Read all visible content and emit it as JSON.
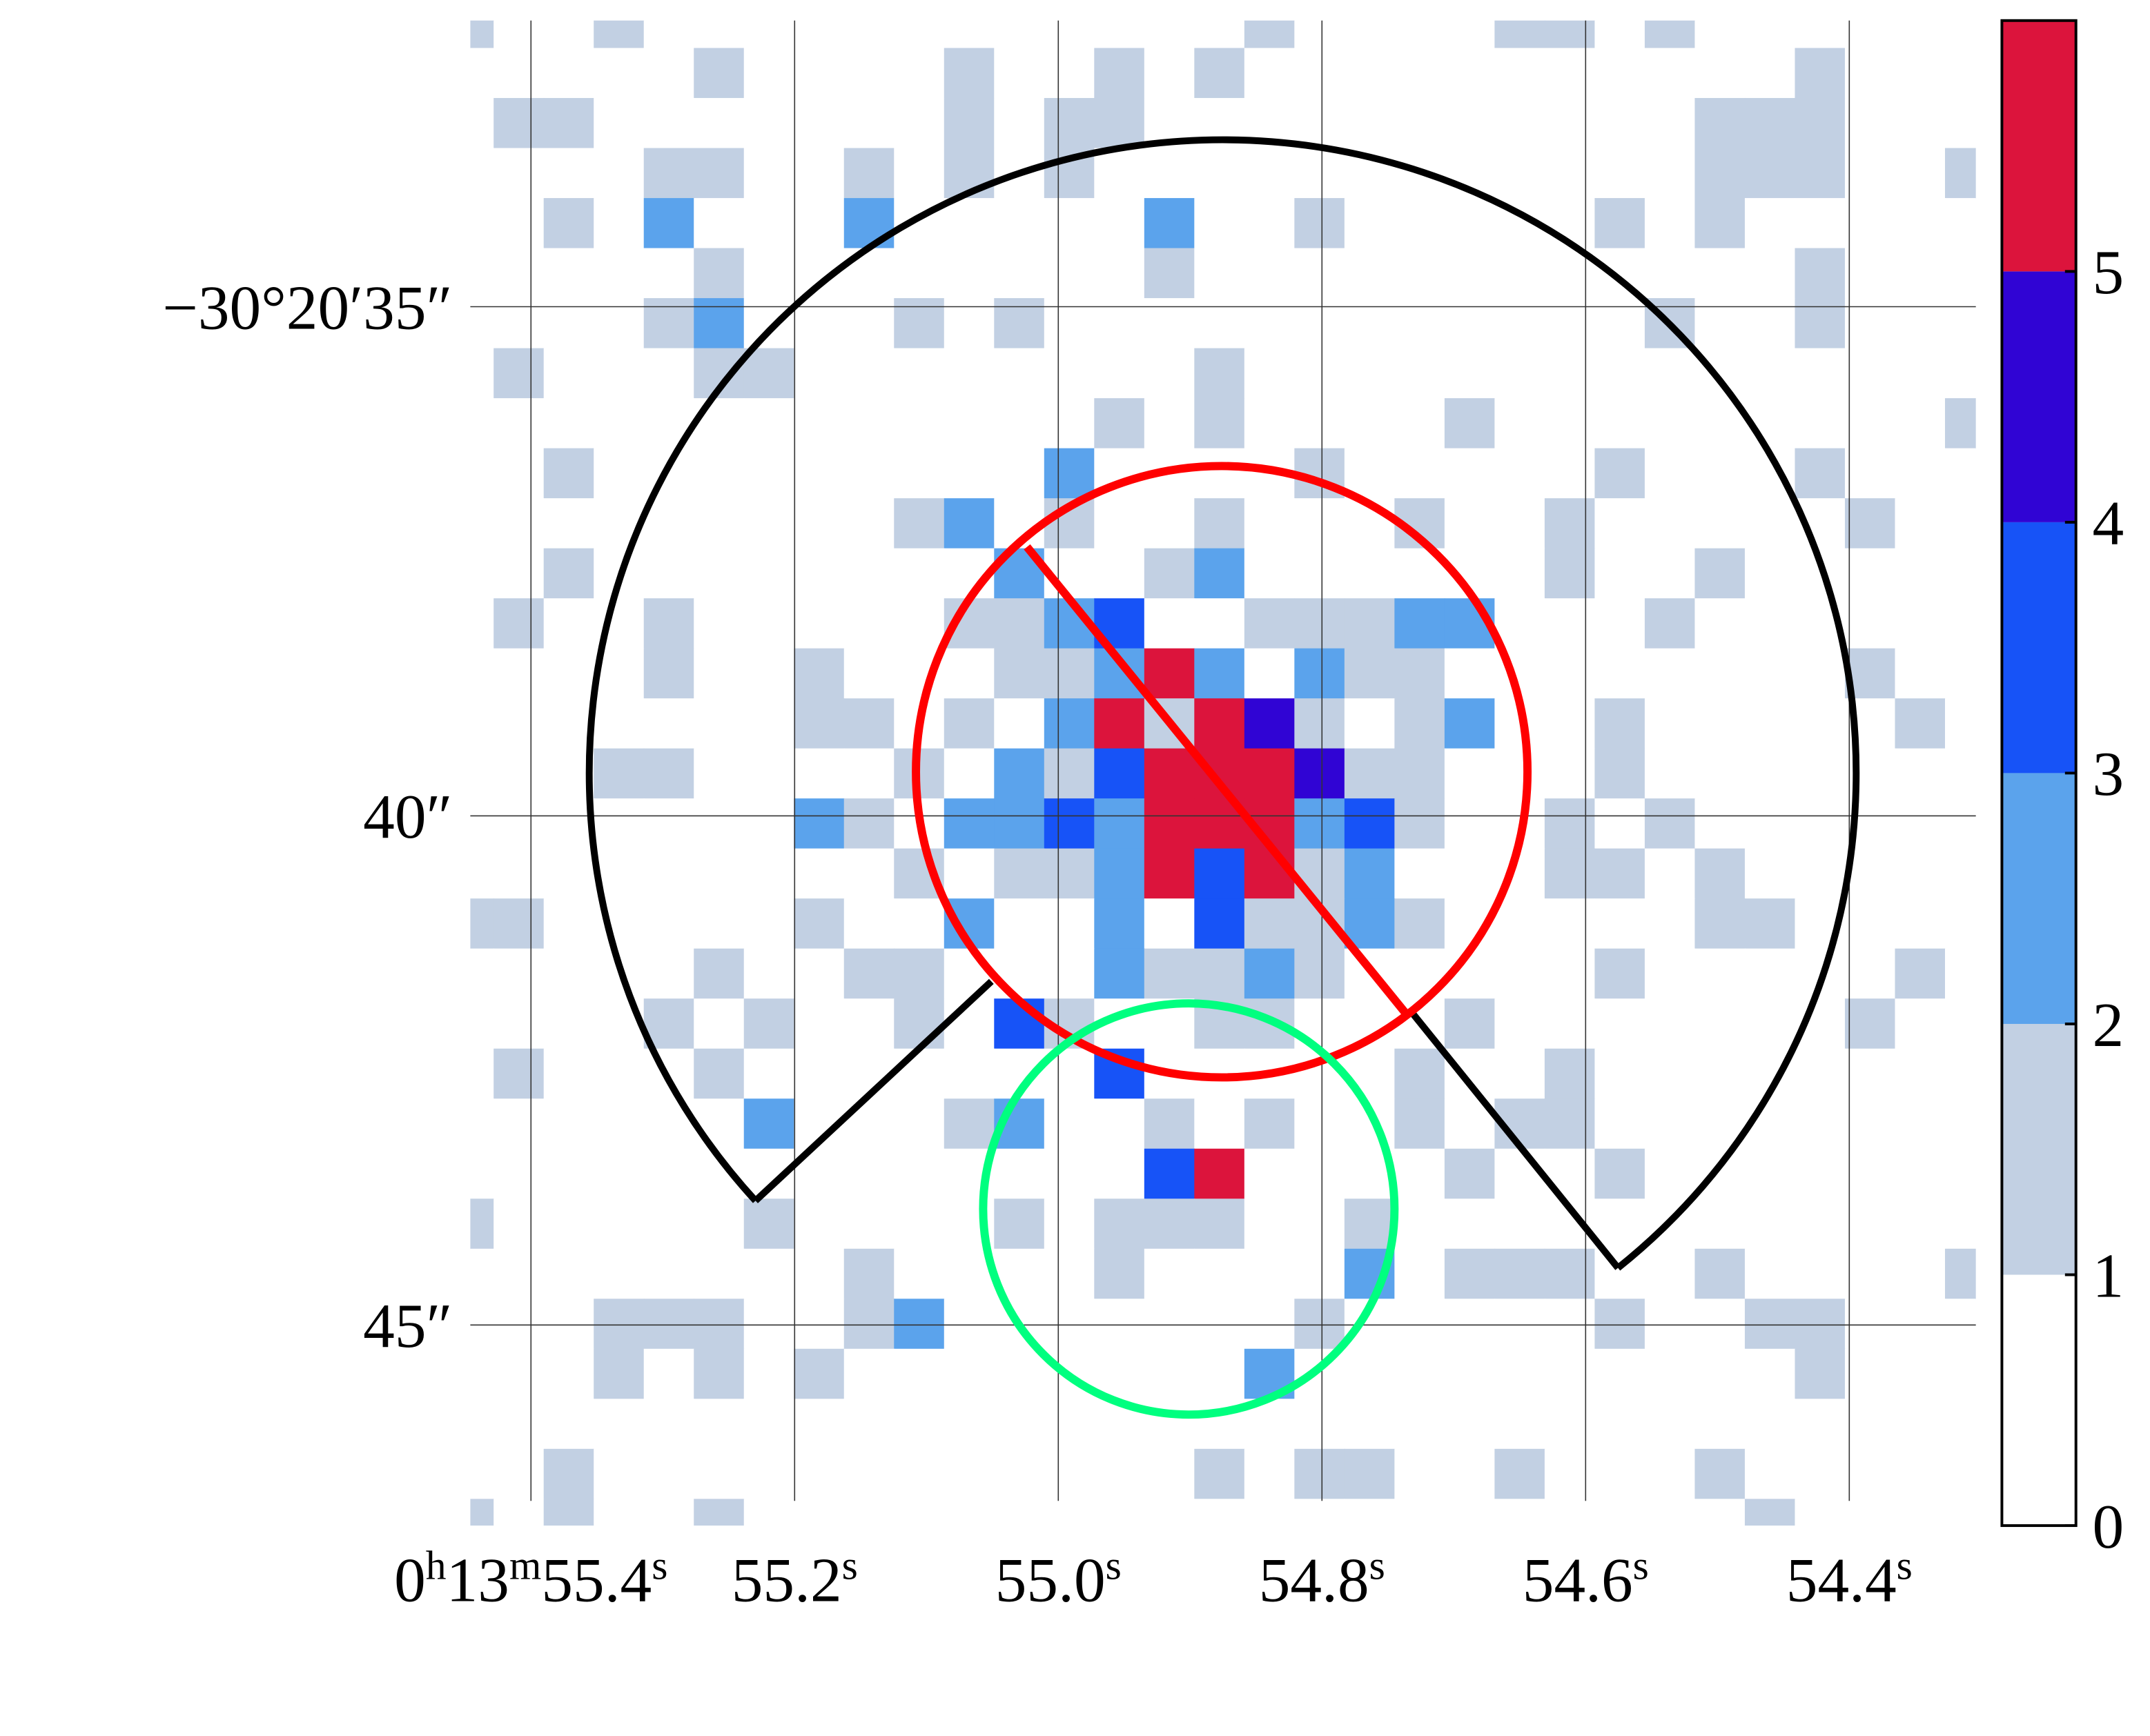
{
  "chart_data": {
    "type": "heatmap",
    "z": [
      [
        1,
        0,
        0,
        1,
        0,
        0,
        0,
        0,
        0,
        0,
        0,
        0,
        0,
        0,
        0,
        0,
        1,
        0,
        0,
        0,
        0,
        1,
        1,
        0,
        1,
        0,
        0,
        0,
        0,
        0,
        0
      ],
      [
        0,
        0,
        0,
        0,
        0,
        1,
        0,
        0,
        0,
        0,
        1,
        0,
        0,
        1,
        0,
        1,
        0,
        0,
        0,
        0,
        0,
        0,
        0,
        0,
        0,
        0,
        0,
        1,
        0,
        0,
        0
      ],
      [
        0,
        1,
        1,
        0,
        0,
        0,
        0,
        0,
        0,
        0,
        1,
        0,
        1,
        1,
        0,
        0,
        0,
        0,
        0,
        0,
        0,
        0,
        0,
        0,
        0,
        1,
        1,
        1,
        0,
        0,
        0
      ],
      [
        0,
        0,
        0,
        0,
        1,
        1,
        0,
        0,
        1,
        0,
        1,
        0,
        1,
        0,
        0,
        0,
        0,
        0,
        0,
        0,
        0,
        0,
        0,
        0,
        0,
        1,
        1,
        1,
        0,
        0,
        1
      ],
      [
        0,
        0,
        1,
        0,
        2,
        0,
        0,
        0,
        2,
        0,
        0,
        0,
        0,
        0,
        2,
        0,
        0,
        1,
        0,
        0,
        0,
        0,
        0,
        1,
        0,
        1,
        0,
        0,
        0,
        0,
        0
      ],
      [
        0,
        0,
        0,
        0,
        0,
        1,
        0,
        0,
        0,
        0,
        0,
        0,
        0,
        0,
        1,
        0,
        0,
        0,
        0,
        0,
        0,
        0,
        0,
        0,
        0,
        0,
        0,
        1,
        0,
        0,
        0
      ],
      [
        0,
        0,
        0,
        0,
        1,
        2,
        0,
        0,
        0,
        1,
        0,
        1,
        0,
        0,
        0,
        0,
        0,
        0,
        0,
        0,
        0,
        0,
        0,
        0,
        1,
        0,
        0,
        1,
        0,
        0,
        0
      ],
      [
        0,
        1,
        0,
        0,
        0,
        1,
        1,
        0,
        0,
        0,
        0,
        0,
        0,
        0,
        0,
        1,
        0,
        0,
        0,
        0,
        0,
        0,
        0,
        0,
        0,
        0,
        0,
        0,
        0,
        0,
        0
      ],
      [
        0,
        0,
        0,
        0,
        0,
        0,
        0,
        0,
        0,
        0,
        0,
        0,
        0,
        1,
        0,
        1,
        0,
        0,
        0,
        0,
        1,
        0,
        0,
        0,
        0,
        0,
        0,
        0,
        0,
        0,
        1
      ],
      [
        0,
        0,
        1,
        0,
        0,
        0,
        0,
        0,
        0,
        0,
        0,
        0,
        2,
        0,
        0,
        0,
        0,
        1,
        0,
        0,
        0,
        0,
        0,
        1,
        0,
        0,
        0,
        1,
        0,
        0,
        0
      ],
      [
        0,
        0,
        0,
        0,
        0,
        0,
        0,
        0,
        0,
        1,
        2,
        0,
        1,
        0,
        0,
        1,
        0,
        0,
        0,
        1,
        0,
        0,
        1,
        0,
        0,
        0,
        0,
        0,
        1,
        0,
        0
      ],
      [
        0,
        0,
        1,
        0,
        0,
        0,
        0,
        0,
        0,
        0,
        0,
        2,
        0,
        0,
        1,
        2,
        0,
        0,
        0,
        0,
        0,
        0,
        1,
        0,
        0,
        1,
        0,
        0,
        0,
        0,
        0
      ],
      [
        0,
        1,
        0,
        0,
        1,
        0,
        0,
        0,
        0,
        0,
        1,
        1,
        2,
        3,
        0,
        0,
        1,
        1,
        1,
        2,
        2,
        0,
        0,
        0,
        1,
        0,
        0,
        0,
        0,
        0,
        0
      ],
      [
        0,
        0,
        0,
        0,
        1,
        0,
        0,
        1,
        0,
        0,
        0,
        1,
        1,
        2,
        5,
        2,
        0,
        2,
        1,
        1,
        0,
        0,
        0,
        0,
        0,
        0,
        0,
        0,
        1,
        0,
        0
      ],
      [
        0,
        0,
        0,
        0,
        0,
        0,
        0,
        1,
        1,
        0,
        1,
        0,
        2,
        5,
        1,
        5,
        4,
        1,
        0,
        1,
        2,
        0,
        0,
        1,
        0,
        0,
        0,
        0,
        0,
        1,
        0
      ],
      [
        0,
        0,
        0,
        1,
        1,
        0,
        0,
        0,
        0,
        1,
        0,
        2,
        1,
        3,
        5,
        5,
        5,
        4,
        1,
        1,
        0,
        0,
        0,
        1,
        0,
        0,
        0,
        0,
        0,
        0,
        0
      ],
      [
        0,
        0,
        0,
        0,
        0,
        0,
        0,
        2,
        1,
        0,
        2,
        2,
        3,
        2,
        5,
        5,
        5,
        2,
        3,
        1,
        0,
        0,
        1,
        0,
        1,
        0,
        0,
        0,
        0,
        0,
        0
      ],
      [
        0,
        0,
        0,
        0,
        0,
        0,
        0,
        0,
        0,
        1,
        0,
        1,
        1,
        2,
        5,
        3,
        5,
        1,
        2,
        0,
        0,
        0,
        1,
        1,
        0,
        1,
        0,
        0,
        0,
        0,
        0
      ],
      [
        1,
        1,
        0,
        0,
        0,
        0,
        0,
        1,
        0,
        0,
        2,
        0,
        0,
        2,
        0,
        3,
        1,
        1,
        2,
        1,
        0,
        0,
        0,
        0,
        0,
        1,
        1,
        0,
        0,
        0,
        0
      ],
      [
        0,
        0,
        0,
        0,
        0,
        1,
        0,
        0,
        1,
        1,
        0,
        0,
        0,
        2,
        1,
        1,
        2,
        1,
        0,
        0,
        0,
        0,
        0,
        1,
        0,
        0,
        0,
        0,
        0,
        1,
        0
      ],
      [
        0,
        0,
        0,
        0,
        1,
        0,
        1,
        0,
        0,
        1,
        0,
        3,
        1,
        0,
        0,
        1,
        1,
        0,
        0,
        0,
        1,
        0,
        0,
        0,
        0,
        0,
        0,
        0,
        1,
        0,
        0
      ],
      [
        0,
        1,
        0,
        0,
        0,
        1,
        0,
        0,
        0,
        0,
        0,
        0,
        0,
        3,
        0,
        0,
        0,
        0,
        0,
        1,
        0,
        0,
        1,
        0,
        0,
        0,
        0,
        0,
        0,
        0,
        0
      ],
      [
        0,
        0,
        0,
        0,
        0,
        0,
        2,
        0,
        0,
        0,
        1,
        2,
        0,
        0,
        1,
        0,
        1,
        0,
        0,
        1,
        0,
        1,
        1,
        0,
        0,
        0,
        0,
        0,
        0,
        0,
        0
      ],
      [
        0,
        0,
        0,
        0,
        0,
        0,
        0,
        0,
        0,
        0,
        0,
        0,
        0,
        0,
        3,
        5,
        0,
        0,
        0,
        0,
        1,
        0,
        0,
        1,
        0,
        0,
        0,
        0,
        0,
        0,
        0
      ],
      [
        1,
        0,
        0,
        0,
        0,
        0,
        1,
        0,
        0,
        0,
        0,
        1,
        0,
        1,
        1,
        1,
        0,
        0,
        1,
        0,
        0,
        0,
        0,
        0,
        0,
        0,
        0,
        0,
        0,
        0,
        0
      ],
      [
        0,
        0,
        0,
        0,
        0,
        0,
        0,
        0,
        1,
        0,
        0,
        0,
        0,
        1,
        0,
        0,
        0,
        0,
        2,
        0,
        1,
        1,
        1,
        0,
        0,
        1,
        0,
        0,
        0,
        0,
        1
      ],
      [
        0,
        0,
        0,
        1,
        1,
        1,
        0,
        0,
        1,
        2,
        0,
        0,
        0,
        0,
        0,
        0,
        0,
        1,
        0,
        0,
        0,
        0,
        0,
        1,
        0,
        0,
        1,
        1,
        0,
        0,
        0
      ],
      [
        0,
        0,
        0,
        1,
        0,
        1,
        0,
        1,
        0,
        0,
        0,
        0,
        0,
        0,
        0,
        0,
        2,
        0,
        0,
        0,
        0,
        0,
        0,
        0,
        0,
        0,
        0,
        1,
        0,
        0,
        0
      ],
      [
        0,
        0,
        0,
        0,
        0,
        0,
        0,
        0,
        0,
        0,
        0,
        0,
        0,
        0,
        0,
        0,
        0,
        0,
        0,
        0,
        0,
        0,
        0,
        0,
        0,
        0,
        0,
        0,
        0,
        0,
        0
      ],
      [
        0,
        0,
        1,
        0,
        0,
        0,
        0,
        0,
        0,
        0,
        0,
        0,
        0,
        0,
        0,
        1,
        0,
        1,
        1,
        0,
        0,
        1,
        0,
        0,
        0,
        1,
        0,
        0,
        0,
        0,
        0
      ],
      [
        1,
        0,
        1,
        0,
        0,
        1,
        0,
        0,
        0,
        0,
        0,
        0,
        0,
        0,
        0,
        0,
        0,
        0,
        0,
        0,
        0,
        0,
        0,
        0,
        0,
        0,
        1,
        0,
        0,
        0,
        0
      ]
    ],
    "xlim": [
      55.446,
      54.304
    ],
    "xticks": [
      {
        "value": 55.4,
        "label": "0h13m55.4s"
      },
      {
        "value": 55.2,
        "label": "55.2s"
      },
      {
        "value": 55.0,
        "label": "55.0s"
      },
      {
        "value": 54.8,
        "label": "54.8s"
      },
      {
        "value": 54.6,
        "label": "54.6s"
      },
      {
        "value": 54.4,
        "label": "54.4s"
      }
    ],
    "ylim": [
      32.19,
      46.97
    ],
    "yticks": [
      {
        "value": 35,
        "label": "−30°20′35″"
      },
      {
        "value": 40,
        "label": "40″"
      },
      {
        "value": 45,
        "label": "45″"
      }
    ],
    "grid": true,
    "clim": [
      0,
      6
    ],
    "cticks": [
      0,
      1,
      2,
      3,
      4,
      5
    ],
    "colors": [
      "#ffffff",
      "#c2d0e3",
      "#5ba3ec",
      "#1753f7",
      "#3004d4",
      "#dc143c"
    ]
  }
}
